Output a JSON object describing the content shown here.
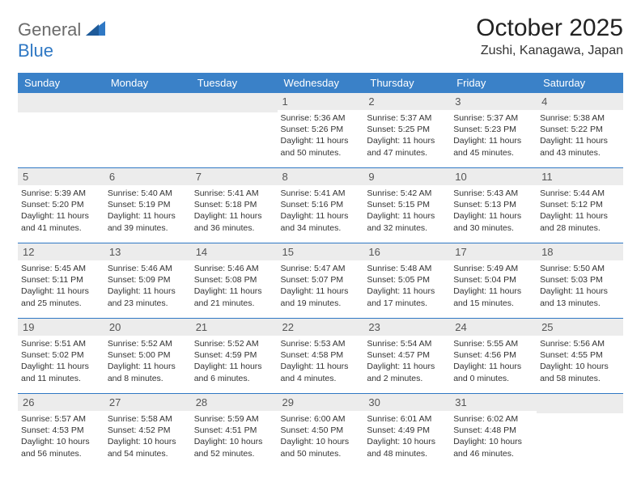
{
  "brand": {
    "part1": "General",
    "part2": "Blue"
  },
  "header": {
    "title": "October 2025",
    "subtitle": "Zushi, Kanagawa, Japan"
  },
  "colors": {
    "header_bg": "#3a81c8",
    "header_text": "#ffffff",
    "rule": "#2f78c4",
    "daynum_bg": "#ececec",
    "brand_gray": "#6b6b6b",
    "brand_blue": "#2f78c4"
  },
  "days_of_week": [
    "Sunday",
    "Monday",
    "Tuesday",
    "Wednesday",
    "Thursday",
    "Friday",
    "Saturday"
  ],
  "weeks": [
    [
      {
        "day": ""
      },
      {
        "day": ""
      },
      {
        "day": ""
      },
      {
        "day": "1",
        "sunrise": "Sunrise: 5:36 AM",
        "sunset": "Sunset: 5:26 PM",
        "daylight": "Daylight: 11 hours and 50 minutes."
      },
      {
        "day": "2",
        "sunrise": "Sunrise: 5:37 AM",
        "sunset": "Sunset: 5:25 PM",
        "daylight": "Daylight: 11 hours and 47 minutes."
      },
      {
        "day": "3",
        "sunrise": "Sunrise: 5:37 AM",
        "sunset": "Sunset: 5:23 PM",
        "daylight": "Daylight: 11 hours and 45 minutes."
      },
      {
        "day": "4",
        "sunrise": "Sunrise: 5:38 AM",
        "sunset": "Sunset: 5:22 PM",
        "daylight": "Daylight: 11 hours and 43 minutes."
      }
    ],
    [
      {
        "day": "5",
        "sunrise": "Sunrise: 5:39 AM",
        "sunset": "Sunset: 5:20 PM",
        "daylight": "Daylight: 11 hours and 41 minutes."
      },
      {
        "day": "6",
        "sunrise": "Sunrise: 5:40 AM",
        "sunset": "Sunset: 5:19 PM",
        "daylight": "Daylight: 11 hours and 39 minutes."
      },
      {
        "day": "7",
        "sunrise": "Sunrise: 5:41 AM",
        "sunset": "Sunset: 5:18 PM",
        "daylight": "Daylight: 11 hours and 36 minutes."
      },
      {
        "day": "8",
        "sunrise": "Sunrise: 5:41 AM",
        "sunset": "Sunset: 5:16 PM",
        "daylight": "Daylight: 11 hours and 34 minutes."
      },
      {
        "day": "9",
        "sunrise": "Sunrise: 5:42 AM",
        "sunset": "Sunset: 5:15 PM",
        "daylight": "Daylight: 11 hours and 32 minutes."
      },
      {
        "day": "10",
        "sunrise": "Sunrise: 5:43 AM",
        "sunset": "Sunset: 5:13 PM",
        "daylight": "Daylight: 11 hours and 30 minutes."
      },
      {
        "day": "11",
        "sunrise": "Sunrise: 5:44 AM",
        "sunset": "Sunset: 5:12 PM",
        "daylight": "Daylight: 11 hours and 28 minutes."
      }
    ],
    [
      {
        "day": "12",
        "sunrise": "Sunrise: 5:45 AM",
        "sunset": "Sunset: 5:11 PM",
        "daylight": "Daylight: 11 hours and 25 minutes."
      },
      {
        "day": "13",
        "sunrise": "Sunrise: 5:46 AM",
        "sunset": "Sunset: 5:09 PM",
        "daylight": "Daylight: 11 hours and 23 minutes."
      },
      {
        "day": "14",
        "sunrise": "Sunrise: 5:46 AM",
        "sunset": "Sunset: 5:08 PM",
        "daylight": "Daylight: 11 hours and 21 minutes."
      },
      {
        "day": "15",
        "sunrise": "Sunrise: 5:47 AM",
        "sunset": "Sunset: 5:07 PM",
        "daylight": "Daylight: 11 hours and 19 minutes."
      },
      {
        "day": "16",
        "sunrise": "Sunrise: 5:48 AM",
        "sunset": "Sunset: 5:05 PM",
        "daylight": "Daylight: 11 hours and 17 minutes."
      },
      {
        "day": "17",
        "sunrise": "Sunrise: 5:49 AM",
        "sunset": "Sunset: 5:04 PM",
        "daylight": "Daylight: 11 hours and 15 minutes."
      },
      {
        "day": "18",
        "sunrise": "Sunrise: 5:50 AM",
        "sunset": "Sunset: 5:03 PM",
        "daylight": "Daylight: 11 hours and 13 minutes."
      }
    ],
    [
      {
        "day": "19",
        "sunrise": "Sunrise: 5:51 AM",
        "sunset": "Sunset: 5:02 PM",
        "daylight": "Daylight: 11 hours and 11 minutes."
      },
      {
        "day": "20",
        "sunrise": "Sunrise: 5:52 AM",
        "sunset": "Sunset: 5:00 PM",
        "daylight": "Daylight: 11 hours and 8 minutes."
      },
      {
        "day": "21",
        "sunrise": "Sunrise: 5:52 AM",
        "sunset": "Sunset: 4:59 PM",
        "daylight": "Daylight: 11 hours and 6 minutes."
      },
      {
        "day": "22",
        "sunrise": "Sunrise: 5:53 AM",
        "sunset": "Sunset: 4:58 PM",
        "daylight": "Daylight: 11 hours and 4 minutes."
      },
      {
        "day": "23",
        "sunrise": "Sunrise: 5:54 AM",
        "sunset": "Sunset: 4:57 PM",
        "daylight": "Daylight: 11 hours and 2 minutes."
      },
      {
        "day": "24",
        "sunrise": "Sunrise: 5:55 AM",
        "sunset": "Sunset: 4:56 PM",
        "daylight": "Daylight: 11 hours and 0 minutes."
      },
      {
        "day": "25",
        "sunrise": "Sunrise: 5:56 AM",
        "sunset": "Sunset: 4:55 PM",
        "daylight": "Daylight: 10 hours and 58 minutes."
      }
    ],
    [
      {
        "day": "26",
        "sunrise": "Sunrise: 5:57 AM",
        "sunset": "Sunset: 4:53 PM",
        "daylight": "Daylight: 10 hours and 56 minutes."
      },
      {
        "day": "27",
        "sunrise": "Sunrise: 5:58 AM",
        "sunset": "Sunset: 4:52 PM",
        "daylight": "Daylight: 10 hours and 54 minutes."
      },
      {
        "day": "28",
        "sunrise": "Sunrise: 5:59 AM",
        "sunset": "Sunset: 4:51 PM",
        "daylight": "Daylight: 10 hours and 52 minutes."
      },
      {
        "day": "29",
        "sunrise": "Sunrise: 6:00 AM",
        "sunset": "Sunset: 4:50 PM",
        "daylight": "Daylight: 10 hours and 50 minutes."
      },
      {
        "day": "30",
        "sunrise": "Sunrise: 6:01 AM",
        "sunset": "Sunset: 4:49 PM",
        "daylight": "Daylight: 10 hours and 48 minutes."
      },
      {
        "day": "31",
        "sunrise": "Sunrise: 6:02 AM",
        "sunset": "Sunset: 4:48 PM",
        "daylight": "Daylight: 10 hours and 46 minutes."
      },
      {
        "day": ""
      }
    ]
  ]
}
